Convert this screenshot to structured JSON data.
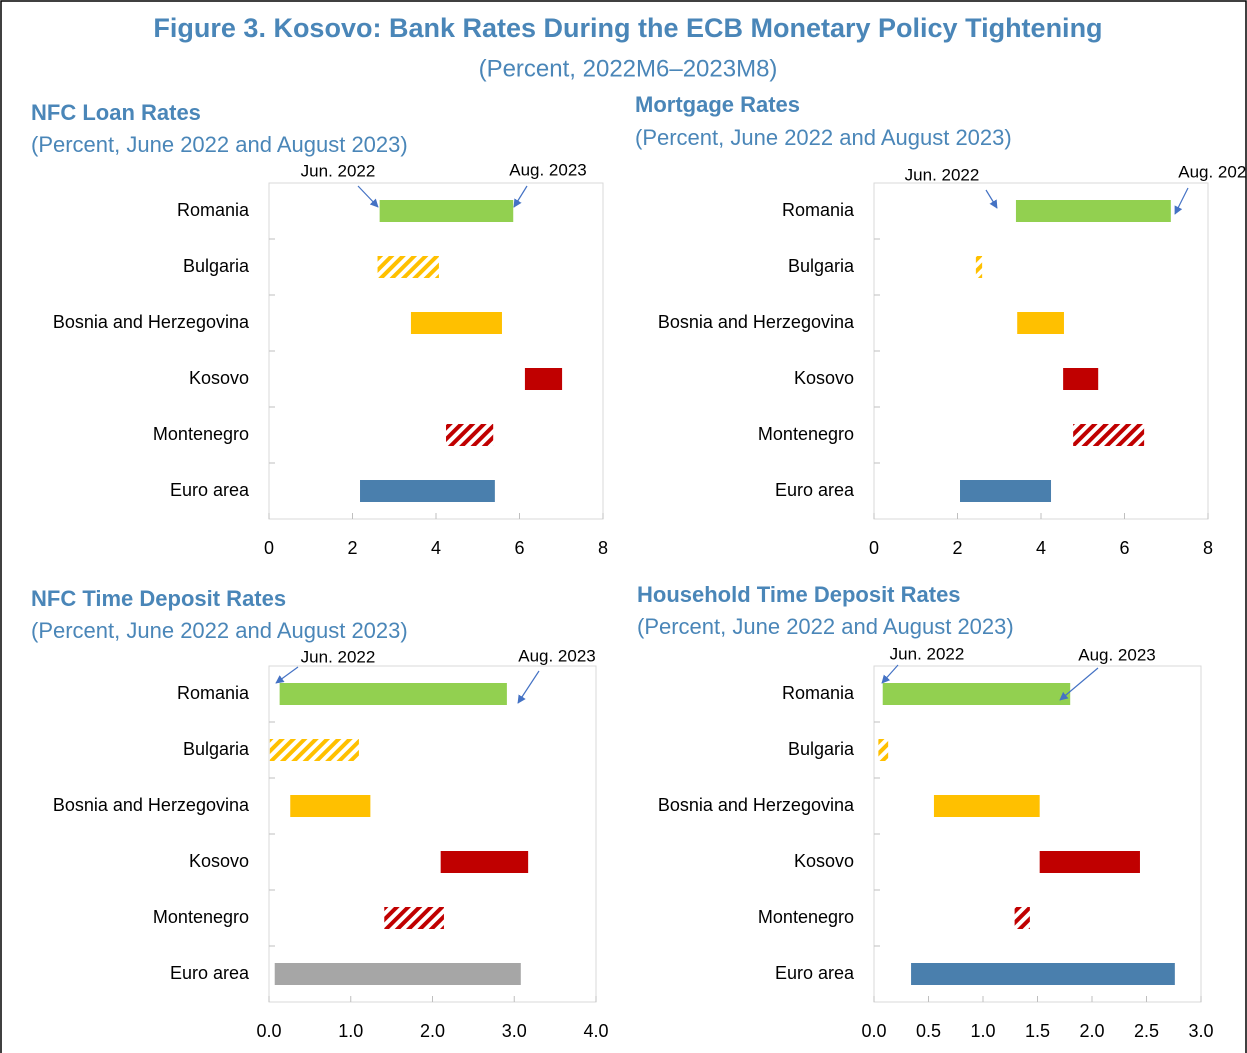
{
  "title": "Figure 3. Kosovo: Bank Rates During the ECB Monetary Policy Tightening",
  "subtitle": "(Percent, 2022M6–2023M8)",
  "chart_data": [
    {
      "type": "range_bar",
      "title": "NFC Loan Rates",
      "subtitle": "(Percent, June 2022 and August 2023)",
      "categories": [
        "Romania",
        "Bulgaria",
        "Bosnia and Herzegovina",
        "Kosovo",
        "Montenegro",
        "Euro area"
      ],
      "series": [
        {
          "name": "Jun. 2022",
          "values": [
            2.65,
            2.6,
            3.4,
            6.13,
            4.24,
            2.18
          ]
        },
        {
          "name": "Aug. 2023",
          "values": [
            5.85,
            4.07,
            5.58,
            7.02,
            5.37,
            5.41
          ]
        }
      ],
      "colors": [
        "#92d050",
        "#ffc000",
        "#ffc000",
        "#c00000",
        "#c00000",
        "#4a7fad"
      ],
      "hatched": [
        false,
        true,
        false,
        false,
        true,
        false
      ],
      "xlim": [
        0,
        8
      ],
      "xticks": [
        0,
        2,
        4,
        6,
        8
      ]
    },
    {
      "type": "range_bar",
      "title": "Mortgage Rates",
      "subtitle": "(Percent, June 2022 and August 2023)",
      "categories": [
        "Romania",
        "Bulgaria",
        "Bosnia and Herzegovina",
        "Kosovo",
        "Montenegro",
        "Euro area"
      ],
      "series": [
        {
          "name": "Jun. 2022",
          "values": [
            3.4,
            2.44,
            3.43,
            4.53,
            4.77,
            2.06
          ]
        },
        {
          "name": "Aug. 2023",
          "values": [
            7.11,
            2.59,
            4.55,
            5.37,
            6.47,
            4.24
          ]
        }
      ],
      "colors": [
        "#92d050",
        "#ffc000",
        "#ffc000",
        "#c00000",
        "#c00000",
        "#4a7fad"
      ],
      "hatched": [
        false,
        true,
        false,
        false,
        true,
        false
      ],
      "xlim": [
        0,
        8
      ],
      "xticks": [
        0,
        2,
        4,
        6,
        8
      ]
    },
    {
      "type": "range_bar",
      "title": "NFC Time Deposit Rates",
      "subtitle": "(Percent, June 2022 and August 2023)",
      "categories": [
        "Romania",
        "Bulgaria",
        "Bosnia and Herzegovina",
        "Kosovo",
        "Montenegro",
        "Euro area"
      ],
      "series": [
        {
          "name": "Jun. 2022",
          "values": [
            0.13,
            0.01,
            0.26,
            2.1,
            1.41,
            0.07
          ]
        },
        {
          "name": "Aug. 2023",
          "values": [
            2.91,
            1.1,
            1.24,
            3.17,
            2.14,
            3.08
          ]
        }
      ],
      "colors": [
        "#92d050",
        "#ffc000",
        "#ffc000",
        "#c00000",
        "#c00000",
        "#a6a6a6"
      ],
      "hatched": [
        false,
        true,
        false,
        false,
        true,
        false
      ],
      "xlim": [
        0,
        4
      ],
      "xticks": [
        {
          "value": 0,
          "label": "0.0"
        },
        {
          "value": 1,
          "label": "1.0"
        },
        {
          "value": 2,
          "label": "2.0"
        },
        {
          "value": 3,
          "label": "3.0"
        },
        {
          "value": 4,
          "label": "4.0"
        }
      ]
    },
    {
      "type": "range_bar",
      "title": "Household Time Deposit Rates",
      "subtitle": "(Percent, June 2022 and August 2023)",
      "categories": [
        "Romania",
        "Bulgaria",
        "Bosnia and Herzegovina",
        "Kosovo",
        "Montenegro",
        "Euro area"
      ],
      "series": [
        {
          "name": "Jun. 2022",
          "values": [
            0.08,
            0.04,
            0.55,
            1.52,
            1.29,
            0.34
          ]
        },
        {
          "name": "Aug. 2023",
          "values": [
            1.8,
            0.13,
            1.52,
            2.44,
            1.43,
            2.76
          ]
        }
      ],
      "colors": [
        "#92d050",
        "#ffc000",
        "#ffc000",
        "#c00000",
        "#c00000",
        "#4a7fad"
      ],
      "hatched": [
        false,
        true,
        false,
        false,
        true,
        false
      ],
      "xlim": [
        0,
        3
      ],
      "xticks": [
        {
          "value": 0,
          "label": "0.0"
        },
        0.5,
        {
          "value": 1,
          "label": "1.0"
        },
        1.5,
        {
          "value": 2,
          "label": "2.0"
        },
        2.5,
        {
          "value": 3,
          "label": "3.0"
        }
      ]
    }
  ]
}
